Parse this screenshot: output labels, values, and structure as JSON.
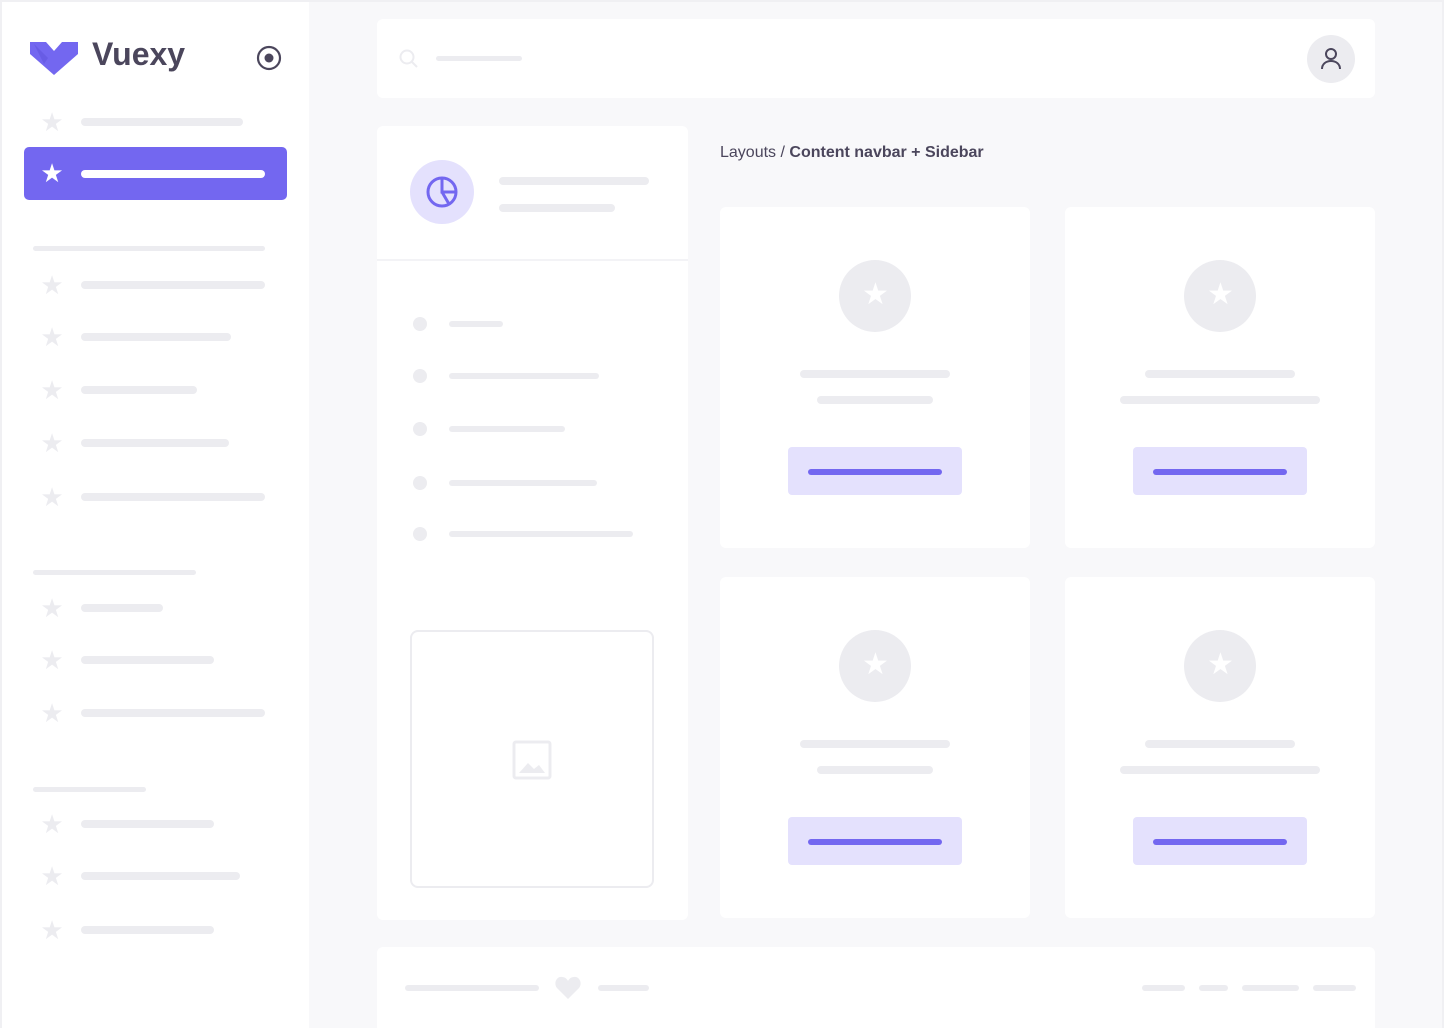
{
  "brand": {
    "name": "Vuexy",
    "accent": "#7367f0",
    "accent_light": "#e4e1fd"
  },
  "breadcrumb": {
    "parent": "Layouts",
    "separator": " / ",
    "current": "Content navbar + Sidebar"
  },
  "icons": {
    "sidebar_item": "star-icon",
    "toggle": "radio-circle-icon",
    "search": "search-icon",
    "user": "user-icon",
    "panel": "pie-chart-icon",
    "image": "image-icon",
    "footer": "heart-icon"
  }
}
